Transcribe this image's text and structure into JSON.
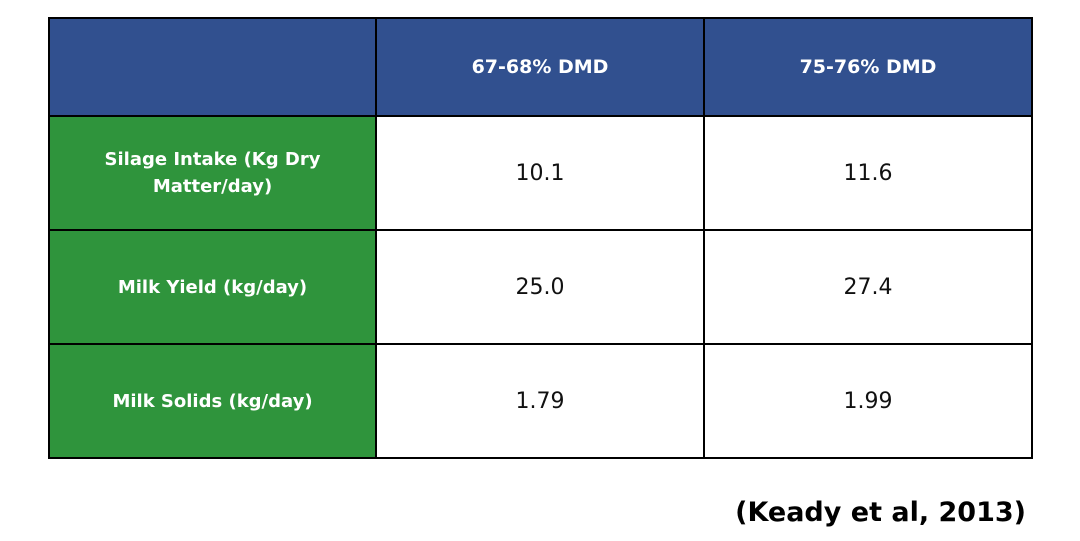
{
  "table": {
    "columns": [
      "",
      "67-68% DMD",
      "75-76% DMD"
    ],
    "rows": [
      {
        "label": "Silage Intake (Kg Dry Matter/day)",
        "values": [
          "10.1",
          "11.6"
        ]
      },
      {
        "label": "Milk Yield (kg/day)",
        "values": [
          "25.0",
          "27.4"
        ]
      },
      {
        "label": "Milk Solids (kg/day)",
        "values": [
          "1.79",
          "1.99"
        ]
      }
    ]
  },
  "source": "(Keady et al, 2013)",
  "colors": {
    "header_blue": "#31508f",
    "row_header_green": "#2f943c",
    "border": "#000000"
  }
}
